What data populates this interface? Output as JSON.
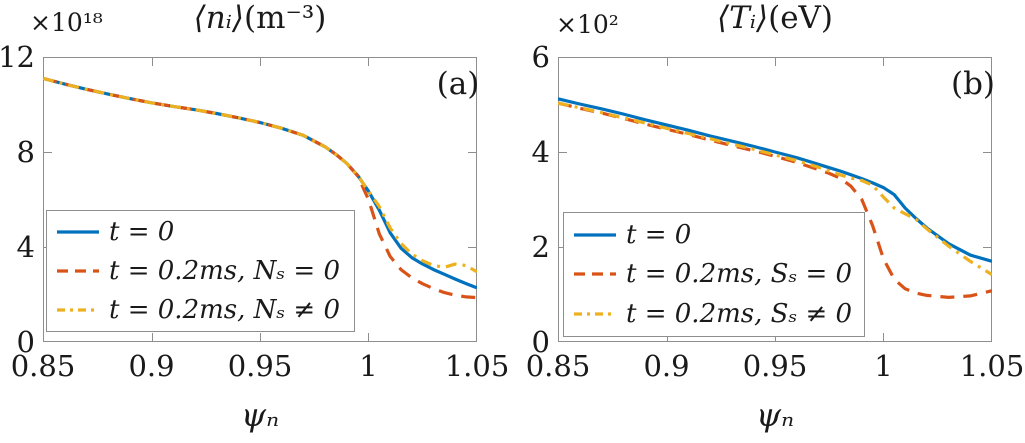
{
  "figure": {
    "background": "#ffffff",
    "text_color": "#1a1a1a",
    "frame_color": "#8e8e8e"
  },
  "chart_data": [
    {
      "type": "line",
      "panel_label": "(a)",
      "title_var": "⟨nᵢ⟩",
      "title_unit": "(m⁻³)",
      "offset_label": "×10¹⁸",
      "xlabel": "ψₙ",
      "ylabel": "",
      "xlim": [
        0.85,
        1.05
      ],
      "ylim": [
        0,
        12
      ],
      "grid": false,
      "legend_position": "lower-left",
      "x_ticks": {
        "values": [
          0.85,
          0.9,
          0.95,
          1,
          1.05
        ],
        "labels": [
          "0.85",
          "0.9",
          "0.95",
          "1",
          "1.05"
        ]
      },
      "y_ticks": {
        "values": [
          0,
          4,
          8,
          12
        ],
        "labels": [
          "0",
          "4",
          "8",
          "12"
        ]
      },
      "series": [
        {
          "name": "t = 0",
          "color": "#0072BD",
          "style": "solid",
          "x": [
            0.85,
            0.86,
            0.87,
            0.88,
            0.89,
            0.9,
            0.91,
            0.92,
            0.93,
            0.94,
            0.95,
            0.96,
            0.97,
            0.98,
            0.985,
            0.99,
            0.995,
            1.0,
            1.005,
            1.01,
            1.015,
            1.02,
            1.025,
            1.03,
            1.035,
            1.04,
            1.045,
            1.05
          ],
          "y": [
            11.1,
            10.86,
            10.64,
            10.44,
            10.25,
            10.07,
            9.92,
            9.78,
            9.62,
            9.44,
            9.24,
            9.0,
            8.7,
            8.22,
            7.9,
            7.52,
            7.02,
            6.35,
            5.55,
            4.6,
            3.95,
            3.55,
            3.28,
            3.05,
            2.85,
            2.65,
            2.46,
            2.28
          ]
        },
        {
          "name": "t = 0.2ms, Nₛ = 0",
          "color": "#D95319",
          "style": "dashed",
          "x": [
            0.85,
            0.86,
            0.87,
            0.88,
            0.89,
            0.9,
            0.91,
            0.92,
            0.93,
            0.94,
            0.95,
            0.96,
            0.97,
            0.98,
            0.985,
            0.99,
            0.995,
            1.0,
            1.005,
            1.01,
            1.015,
            1.02,
            1.025,
            1.03,
            1.035,
            1.04,
            1.045,
            1.05
          ],
          "y": [
            11.1,
            10.86,
            10.64,
            10.44,
            10.25,
            10.07,
            9.92,
            9.78,
            9.62,
            9.44,
            9.24,
            9.0,
            8.7,
            8.22,
            7.9,
            7.52,
            7.0,
            6.0,
            4.55,
            3.6,
            3.05,
            2.7,
            2.45,
            2.25,
            2.08,
            1.97,
            1.9,
            1.87
          ]
        },
        {
          "name": "t = 0.2ms, Nₛ ≠ 0",
          "color": "#EDB120",
          "style": "dashdot",
          "x": [
            0.85,
            0.86,
            0.87,
            0.88,
            0.89,
            0.9,
            0.91,
            0.92,
            0.93,
            0.94,
            0.95,
            0.96,
            0.97,
            0.98,
            0.985,
            0.99,
            0.995,
            1.0,
            1.005,
            1.01,
            1.015,
            1.02,
            1.025,
            1.03,
            1.035,
            1.04,
            1.045,
            1.05
          ],
          "y": [
            11.1,
            10.86,
            10.64,
            10.44,
            10.25,
            10.07,
            9.92,
            9.78,
            9.62,
            9.44,
            9.24,
            9.0,
            8.7,
            8.22,
            7.9,
            7.52,
            7.02,
            6.35,
            5.7,
            4.8,
            4.15,
            3.7,
            3.42,
            3.22,
            3.15,
            3.28,
            3.22,
            2.95
          ]
        }
      ]
    },
    {
      "type": "line",
      "panel_label": "(b)",
      "title_var": "⟨Tᵢ⟩",
      "title_unit": "(eV)",
      "offset_label": "×10²",
      "xlabel": "ψₙ",
      "ylabel": "",
      "xlim": [
        0.85,
        1.05
      ],
      "ylim": [
        0,
        6
      ],
      "grid": false,
      "legend_position": "lower-left",
      "x_ticks": {
        "values": [
          0.85,
          0.9,
          0.95,
          1,
          1.05
        ],
        "labels": [
          "0.85",
          "0.9",
          "0.95",
          "1",
          "1.05"
        ]
      },
      "y_ticks": {
        "values": [
          0,
          2,
          4,
          6
        ],
        "labels": [
          "0",
          "2",
          "4",
          "6"
        ]
      },
      "series": [
        {
          "name": "t = 0",
          "color": "#0072BD",
          "style": "solid",
          "x": [
            0.85,
            0.86,
            0.87,
            0.88,
            0.89,
            0.9,
            0.91,
            0.92,
            0.93,
            0.94,
            0.95,
            0.96,
            0.97,
            0.975,
            0.98,
            0.985,
            0.99,
            0.995,
            1.0,
            1.005,
            1.01,
            1.015,
            1.02,
            1.03,
            1.04,
            1.05
          ],
          "y": [
            5.12,
            5.01,
            4.91,
            4.8,
            4.68,
            4.57,
            4.46,
            4.34,
            4.23,
            4.12,
            4.0,
            3.88,
            3.74,
            3.67,
            3.6,
            3.52,
            3.44,
            3.35,
            3.25,
            3.1,
            2.82,
            2.6,
            2.4,
            2.07,
            1.83,
            1.7
          ]
        },
        {
          "name": "t = 0.2ms, Sₛ = 0",
          "color": "#D95319",
          "style": "dashed",
          "x": [
            0.85,
            0.86,
            0.87,
            0.88,
            0.89,
            0.9,
            0.91,
            0.92,
            0.93,
            0.94,
            0.95,
            0.96,
            0.97,
            0.975,
            0.98,
            0.985,
            0.99,
            0.995,
            1.0,
            1.005,
            1.01,
            1.015,
            1.02,
            1.03,
            1.04,
            1.05
          ],
          "y": [
            5.03,
            4.92,
            4.82,
            4.71,
            4.59,
            4.48,
            4.37,
            4.25,
            4.14,
            4.03,
            3.91,
            3.78,
            3.63,
            3.55,
            3.45,
            3.28,
            3.0,
            2.45,
            1.75,
            1.32,
            1.12,
            1.03,
            0.98,
            0.94,
            0.97,
            1.08
          ]
        },
        {
          "name": "t = 0.2ms, Sₛ ≠ 0",
          "color": "#EDB120",
          "style": "dashdot",
          "x": [
            0.85,
            0.86,
            0.87,
            0.88,
            0.89,
            0.9,
            0.91,
            0.92,
            0.93,
            0.94,
            0.95,
            0.96,
            0.97,
            0.975,
            0.98,
            0.985,
            0.99,
            0.995,
            1.0,
            1.005,
            1.01,
            1.015,
            1.02,
            1.03,
            1.04,
            1.05
          ],
          "y": [
            5.03,
            4.93,
            4.83,
            4.72,
            4.61,
            4.5,
            4.39,
            4.28,
            4.17,
            4.06,
            3.94,
            3.82,
            3.68,
            3.6,
            3.52,
            3.45,
            3.4,
            3.3,
            3.05,
            2.82,
            2.7,
            2.58,
            2.38,
            2.02,
            1.7,
            1.42
          ]
        }
      ]
    }
  ]
}
